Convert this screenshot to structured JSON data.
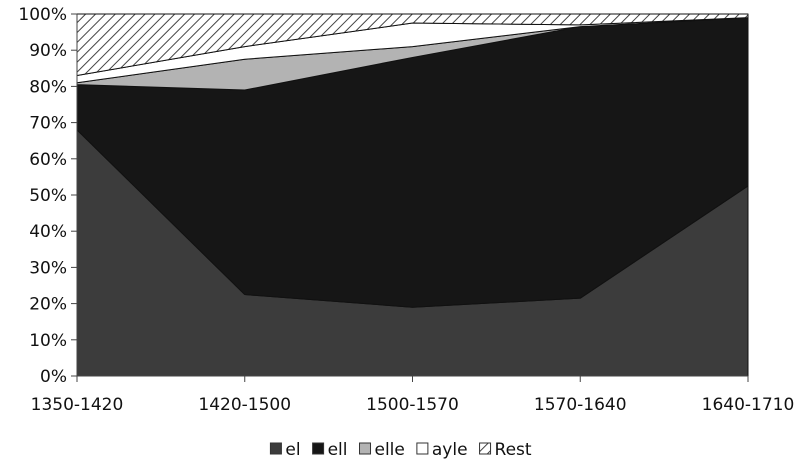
{
  "chart_data": {
    "type": "area",
    "stacked": "percent",
    "title": "",
    "xlabel": "",
    "ylabel": "",
    "categories": [
      "1350-1420",
      "1420-1500",
      "1500-1570",
      "1570-1640",
      "1640-1710"
    ],
    "ylim": [
      0,
      100
    ],
    "y_ticks": [
      "0%",
      "10%",
      "20%",
      "30%",
      "40%",
      "50%",
      "60%",
      "70%",
      "80%",
      "90%",
      "100%"
    ],
    "grid": false,
    "legend_position": "bottom",
    "series": [
      {
        "name": "el",
        "values": [
          68,
          22.5,
          19,
          21.5,
          52.5
        ],
        "fill": "#3c3c3c",
        "pattern": "none"
      },
      {
        "name": "ell",
        "values": [
          12.5,
          56.5,
          69,
          75,
          46.5
        ],
        "fill": "#161616",
        "pattern": "none"
      },
      {
        "name": "elle",
        "values": [
          0.5,
          8.5,
          3,
          0,
          0
        ],
        "fill": "#b3b3b3",
        "pattern": "none"
      },
      {
        "name": "ayle",
        "values": [
          2,
          3.5,
          6.5,
          0.5,
          0
        ],
        "fill": "#ffffff",
        "pattern": "none"
      },
      {
        "name": "Rest",
        "values": [
          17,
          9,
          2.5,
          3,
          1
        ],
        "fill": "#ffffff",
        "pattern": "hatch"
      }
    ]
  }
}
